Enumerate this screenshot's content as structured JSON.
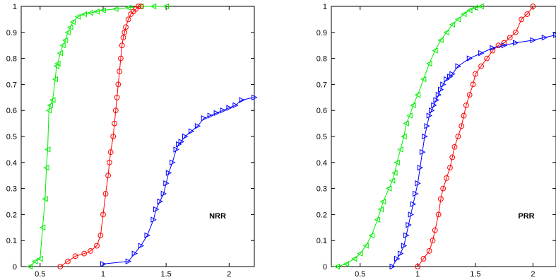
{
  "chart_data": [
    {
      "type": "line",
      "title": "",
      "xlabel": "",
      "ylabel": "",
      "annotation": "NRR",
      "xlim": [
        0.35,
        2.2
      ],
      "ylim": [
        0,
        1
      ],
      "xticks": [
        0.5,
        1,
        1.5,
        2
      ],
      "xtick_labels": [
        "0.5",
        "1",
        "1.5",
        "2"
      ],
      "yticks": [
        0,
        0.1,
        0.2,
        0.3,
        0.4,
        0.5,
        0.6,
        0.7,
        0.8,
        0.9,
        1
      ],
      "ytick_labels": [
        "0",
        "0.1",
        "0.2",
        "0.3",
        "0.4",
        "0.5",
        "0.6",
        "0.7",
        "0.8",
        "0.9",
        "1"
      ],
      "grid": false,
      "series": [
        {
          "color": "#00ee00",
          "marker": "triangle-left",
          "x": [
            0.42,
            0.46,
            0.5,
            0.52,
            0.54,
            0.55,
            0.56,
            0.57,
            0.58,
            0.6,
            0.62,
            0.63,
            0.64,
            0.66,
            0.68,
            0.7,
            0.72,
            0.74,
            0.76,
            0.8,
            0.85,
            0.9,
            0.95,
            1.0,
            1.1,
            1.2,
            1.3,
            1.4,
            1.5
          ],
          "y": [
            0.0,
            0.02,
            0.03,
            0.15,
            0.26,
            0.38,
            0.45,
            0.6,
            0.62,
            0.64,
            0.72,
            0.77,
            0.78,
            0.82,
            0.85,
            0.87,
            0.9,
            0.92,
            0.94,
            0.96,
            0.97,
            0.975,
            0.98,
            0.985,
            0.99,
            0.995,
            1.0,
            1.0,
            1.0
          ]
        },
        {
          "color": "#ff0000",
          "marker": "circle",
          "x": [
            0.66,
            0.72,
            0.78,
            0.85,
            0.9,
            0.95,
            0.98,
            1.0,
            1.02,
            1.04,
            1.05,
            1.06,
            1.08,
            1.09,
            1.1,
            1.11,
            1.12,
            1.13,
            1.14,
            1.15,
            1.16,
            1.17,
            1.18,
            1.2,
            1.22,
            1.24,
            1.26,
            1.28,
            1.3
          ],
          "y": [
            0.0,
            0.02,
            0.04,
            0.05,
            0.06,
            0.08,
            0.12,
            0.2,
            0.28,
            0.35,
            0.4,
            0.44,
            0.5,
            0.55,
            0.6,
            0.65,
            0.7,
            0.75,
            0.8,
            0.85,
            0.88,
            0.9,
            0.92,
            0.95,
            0.97,
            0.98,
            0.99,
            1.0,
            1.0
          ]
        },
        {
          "color": "#0000ff",
          "marker": "triangle-right",
          "x": [
            1.0,
            1.2,
            1.25,
            1.3,
            1.35,
            1.4,
            1.42,
            1.45,
            1.48,
            1.5,
            1.52,
            1.55,
            1.58,
            1.6,
            1.62,
            1.65,
            1.7,
            1.75,
            1.8,
            1.85,
            1.9,
            1.95,
            2.0,
            2.05,
            2.1,
            2.2
          ],
          "y": [
            0.01,
            0.02,
            0.05,
            0.08,
            0.12,
            0.18,
            0.22,
            0.25,
            0.28,
            0.32,
            0.36,
            0.4,
            0.45,
            0.47,
            0.48,
            0.5,
            0.52,
            0.54,
            0.57,
            0.58,
            0.59,
            0.6,
            0.61,
            0.62,
            0.64,
            0.65
          ]
        }
      ]
    },
    {
      "type": "line",
      "title": "",
      "xlabel": "",
      "ylabel": "",
      "annotation": "PRR",
      "xlim": [
        0.25,
        2.2
      ],
      "ylim": [
        0,
        1
      ],
      "xticks": [
        0.5,
        1,
        1.5,
        2
      ],
      "xtick_labels": [
        "0.5",
        "1",
        "1.5",
        "2"
      ],
      "yticks": [
        0,
        0.1,
        0.2,
        0.3,
        0.4,
        0.5,
        0.6,
        0.7,
        0.8,
        0.9,
        1
      ],
      "ytick_labels": [
        "0",
        "0.1",
        "0.2",
        "0.3",
        "0.4",
        "0.5",
        "0.6",
        "0.7",
        "0.8",
        "0.9",
        "1"
      ],
      "grid": false,
      "series": [
        {
          "color": "#00ee00",
          "marker": "triangle-left",
          "x": [
            0.3,
            0.38,
            0.45,
            0.5,
            0.55,
            0.6,
            0.65,
            0.68,
            0.7,
            0.75,
            0.78,
            0.8,
            0.82,
            0.85,
            0.88,
            0.9,
            0.93,
            0.96,
            1.0,
            1.05,
            1.1,
            1.15,
            1.2,
            1.25,
            1.3,
            1.35,
            1.4,
            1.45,
            1.5,
            1.55
          ],
          "y": [
            0.0,
            0.01,
            0.03,
            0.05,
            0.08,
            0.12,
            0.18,
            0.22,
            0.25,
            0.3,
            0.33,
            0.36,
            0.4,
            0.45,
            0.5,
            0.55,
            0.58,
            0.62,
            0.66,
            0.72,
            0.78,
            0.83,
            0.87,
            0.9,
            0.93,
            0.95,
            0.97,
            0.985,
            0.995,
            1.0
          ]
        },
        {
          "color": "#ff0000",
          "marker": "circle",
          "x": [
            1.0,
            1.05,
            1.1,
            1.13,
            1.15,
            1.18,
            1.2,
            1.22,
            1.25,
            1.28,
            1.3,
            1.32,
            1.35,
            1.38,
            1.4,
            1.42,
            1.45,
            1.48,
            1.5,
            1.55,
            1.6,
            1.65,
            1.7,
            1.75,
            1.8,
            1.85,
            1.9,
            1.95,
            2.0
          ],
          "y": [
            0.0,
            0.03,
            0.06,
            0.1,
            0.14,
            0.2,
            0.26,
            0.3,
            0.34,
            0.38,
            0.42,
            0.46,
            0.5,
            0.54,
            0.58,
            0.62,
            0.66,
            0.7,
            0.74,
            0.77,
            0.8,
            0.83,
            0.85,
            0.86,
            0.88,
            0.9,
            0.95,
            0.97,
            1.0
          ]
        },
        {
          "color": "#0000ff",
          "marker": "triangle-right",
          "x": [
            0.78,
            0.82,
            0.85,
            0.88,
            0.9,
            0.92,
            0.94,
            0.96,
            0.98,
            1.0,
            1.02,
            1.04,
            1.06,
            1.08,
            1.1,
            1.12,
            1.14,
            1.16,
            1.18,
            1.2,
            1.22,
            1.25,
            1.28,
            1.3,
            1.35,
            1.45,
            1.55,
            1.65,
            1.75,
            1.85,
            2.0,
            2.1,
            2.2
          ],
          "y": [
            0.0,
            0.03,
            0.05,
            0.08,
            0.12,
            0.16,
            0.2,
            0.24,
            0.28,
            0.32,
            0.38,
            0.44,
            0.5,
            0.54,
            0.58,
            0.6,
            0.62,
            0.64,
            0.66,
            0.68,
            0.7,
            0.72,
            0.73,
            0.74,
            0.77,
            0.8,
            0.82,
            0.84,
            0.85,
            0.86,
            0.87,
            0.88,
            0.89
          ]
        }
      ]
    }
  ]
}
